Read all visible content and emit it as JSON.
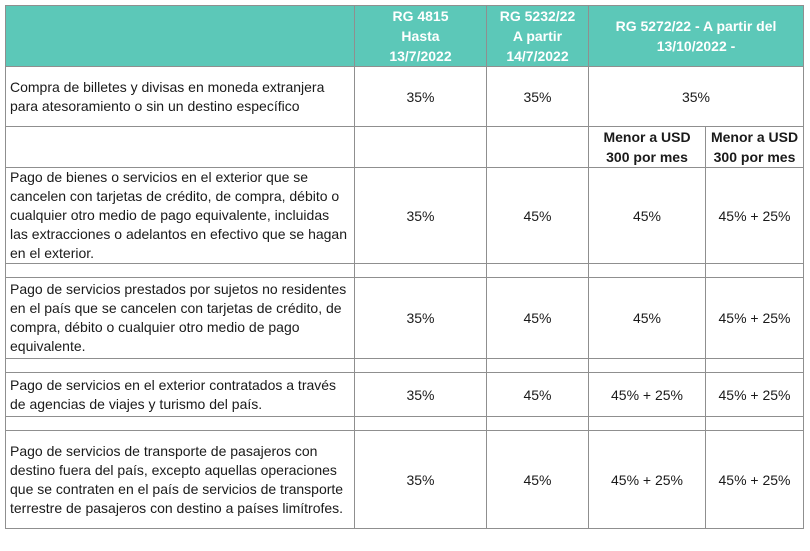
{
  "header": {
    "col1": {
      "line1": "RG 4815",
      "line2": "Hasta",
      "line3": "13/7/2022"
    },
    "col2": {
      "line1": "RG 5232/22",
      "line2": "A partir",
      "line3": "14/7/2022"
    },
    "col3": {
      "line1": "RG 5272/22 - A partir del",
      "line2": "13/10/2022 -"
    }
  },
  "subheader": {
    "label_a": {
      "line1": "Menor a USD",
      "line2": "300 por mes"
    },
    "label_b": {
      "line1": "Menor a USD",
      "line2": "300 por mes"
    }
  },
  "rows": [
    {
      "description": "Compra de billetes y divisas en moneda extranjera para atesoramiento o sin un destino específico",
      "rg4815": "35%",
      "rg5232": "35%",
      "rg5272": "35%"
    },
    {
      "description": "Pago de bienes o servicios en el exterior que se cancelen con tarjetas de crédito, de compra, débito o cualquier otro medio de pago equivalente, incluidas las extracciones o adelantos en efectivo que se hagan en el exterior.",
      "rg4815": "35%",
      "rg5232": "45%",
      "rg5272_a": "45%",
      "rg5272_b": "45% + 25%"
    },
    {
      "description": "Pago de servicios prestados por sujetos no residentes en el país que se cancelen con tarjetas de crédito, de compra, débito o cualquier otro medio de pago equivalente.",
      "rg4815": "35%",
      "rg5232": "45%",
      "rg5272_a": "45%",
      "rg5272_b": "45% + 25%"
    },
    {
      "description": "Pago de servicios en el exterior contratados a través de agencias de viajes y turismo del país.",
      "rg4815": "35%",
      "rg5232": "45%",
      "rg5272_a": "45% + 25%",
      "rg5272_b": "45% + 25%"
    },
    {
      "description": "Pago de servicios de transporte de pasajeros con destino fuera del país, excepto aquellas operaciones que se contraten en el país de servicios de transporte terrestre de pasajeros con destino a países limítrofes.",
      "rg4815": "35%",
      "rg5232": "45%",
      "rg5272_a": "45% + 25%",
      "rg5272_b": "45% + 25%"
    }
  ]
}
